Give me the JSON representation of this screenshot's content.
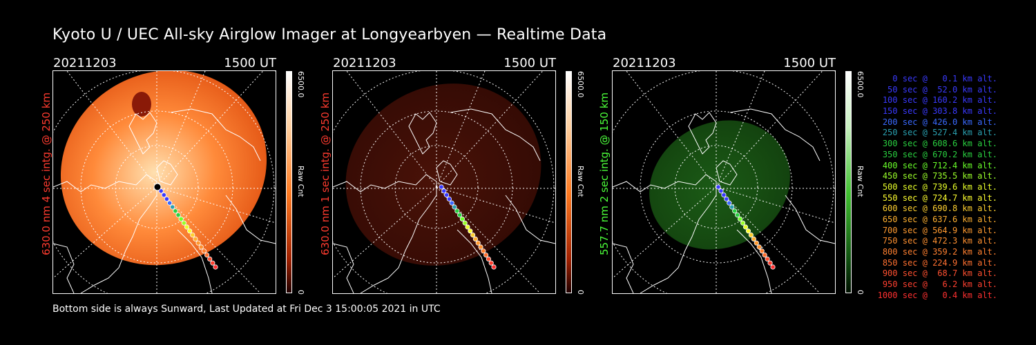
{
  "title": "Kyoto U / UEC All-sky Airglow Imager at Longyearbyen — Realtime Data",
  "footer": "Bottom side is always Sunward, Last Updated at Fri Dec  3 15:00:05 2021 in UTC",
  "panels": [
    {
      "date": "20211203",
      "time": "1500 UT",
      "side_label": "630.0 nm 4 sec intg. @ 250 km",
      "side_color": "#ff3b2f",
      "colorbar_max": "6500.0",
      "colorbar_label": "Raw Cnt",
      "colorbar_min": "0",
      "fill_inner": "#ffe0b0",
      "fill_mid": "#ff8a3a",
      "fill_outer": "#e05010"
    },
    {
      "date": "20211203",
      "time": "1500 UT",
      "side_label": "630.0 nm 1 sec intg. @ 250 km",
      "side_color": "#ff3b2f",
      "colorbar_max": "6500.0",
      "colorbar_label": "Raw Cnt",
      "colorbar_min": "0",
      "fill_inner": "#4a1208",
      "fill_mid": "#3e0e06",
      "fill_outer": "#330a04"
    },
    {
      "date": "20211203",
      "time": "1500 UT",
      "side_label": "557.7 nm 2 sec intg. @ 150 km",
      "side_color": "#4cff3a",
      "colorbar_max": "6500.0",
      "colorbar_label": "Raw Cnt",
      "colorbar_min": "0",
      "fill_inner": "#1b5a16",
      "fill_mid": "#174e12",
      "fill_outer": "#12400e"
    }
  ],
  "legend": [
    {
      "text": "0 sec @   0.1 km alt.",
      "color": "#3a3aff"
    },
    {
      "text": "50 sec @  52.0 km alt.",
      "color": "#3a3aff"
    },
    {
      "text": "100 sec @ 160.2 km alt.",
      "color": "#3a3aff"
    },
    {
      "text": "150 sec @ 303.8 km alt.",
      "color": "#3a3aff"
    },
    {
      "text": "200 sec @ 426.0 km alt.",
      "color": "#3a6aff"
    },
    {
      "text": "250 sec @ 527.4 km alt.",
      "color": "#2aa0b0"
    },
    {
      "text": "300 sec @ 608.6 km alt.",
      "color": "#2ad040"
    },
    {
      "text": "350 sec @ 670.2 km alt.",
      "color": "#2ad040"
    },
    {
      "text": "400 sec @ 712.4 km alt.",
      "color": "#6aff2a"
    },
    {
      "text": "450 sec @ 735.5 km alt.",
      "color": "#9aff2a"
    },
    {
      "text": "500 sec @ 739.6 km alt.",
      "color": "#e8ff2a"
    },
    {
      "text": "550 sec @ 724.7 km alt.",
      "color": "#ffff30"
    },
    {
      "text": "600 sec @ 690.8 km alt.",
      "color": "#ffd030"
    },
    {
      "text": "650 sec @ 637.6 km alt.",
      "color": "#ffb030"
    },
    {
      "text": "700 sec @ 564.9 km alt.",
      "color": "#ff9a30"
    },
    {
      "text": "750 sec @ 472.3 km alt.",
      "color": "#ff9030"
    },
    {
      "text": "800 sec @ 359.2 km alt.",
      "color": "#ff8030"
    },
    {
      "text": "850 sec @ 224.9 km alt.",
      "color": "#ff7030"
    },
    {
      "text": "900 sec @  68.7 km alt.",
      "color": "#ff5030"
    },
    {
      "text": "950 sec @   6.2 km alt.",
      "color": "#ff4030"
    },
    {
      "text": "1000 sec @   0.4 km alt.",
      "color": "#ff3030"
    }
  ]
}
